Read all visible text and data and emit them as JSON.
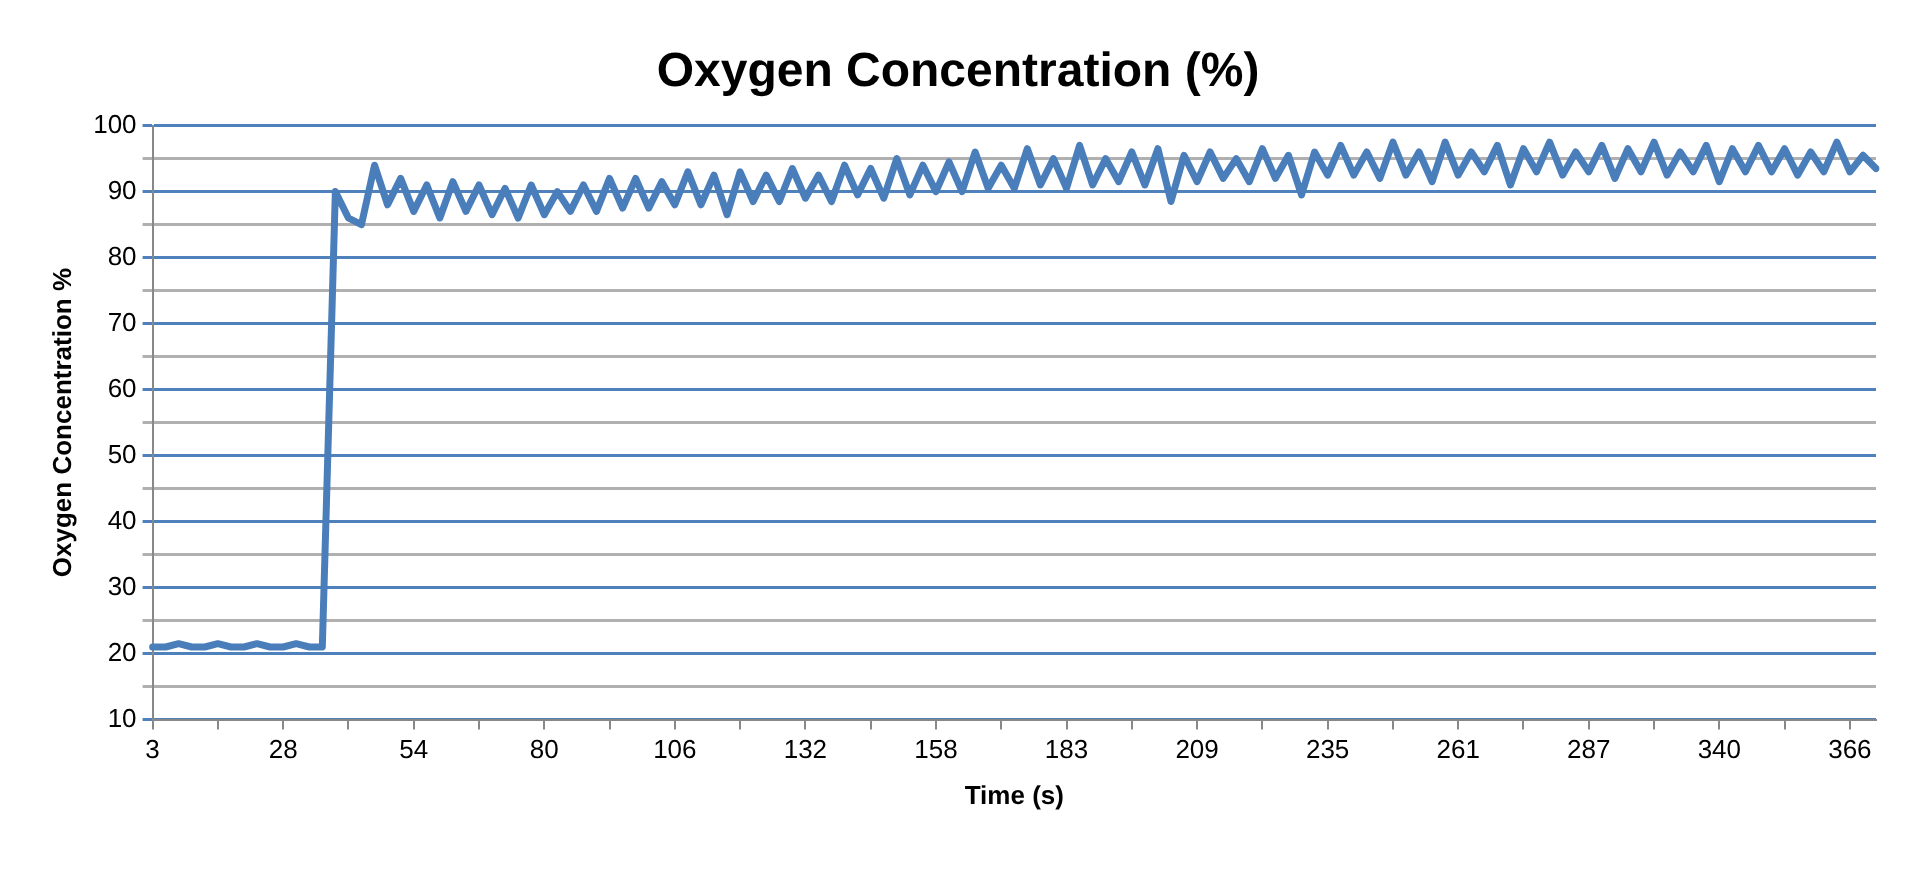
{
  "chart_data": {
    "type": "line",
    "title": "Oxygen Concentration (%)",
    "xlabel": "Time (s)",
    "ylabel": "Oxygen Concentration %",
    "categories": [
      "3",
      null,
      null,
      null,
      null,
      null,
      null,
      null,
      null,
      null,
      "28",
      null,
      null,
      null,
      null,
      null,
      null,
      null,
      null,
      null,
      "54",
      null,
      null,
      null,
      null,
      null,
      null,
      null,
      null,
      null,
      "80",
      null,
      null,
      null,
      null,
      null,
      null,
      null,
      null,
      null,
      "106",
      null,
      null,
      null,
      null,
      null,
      null,
      null,
      null,
      null,
      "132",
      null,
      null,
      null,
      null,
      null,
      null,
      null,
      null,
      null,
      "158",
      null,
      null,
      null,
      null,
      null,
      null,
      null,
      null,
      null,
      "183",
      null,
      null,
      null,
      null,
      null,
      null,
      null,
      null,
      null,
      "209",
      null,
      null,
      null,
      null,
      null,
      null,
      null,
      null,
      null,
      "235",
      null,
      null,
      null,
      null,
      null,
      null,
      null,
      null,
      null,
      "261",
      null,
      null,
      null,
      null,
      null,
      null,
      null,
      null,
      null,
      "287",
      null,
      null,
      null,
      null,
      null,
      null,
      null,
      null,
      null,
      "340",
      null,
      null,
      null,
      null,
      null,
      null,
      null,
      null,
      null,
      "366",
      null,
      null
    ],
    "series": [
      {
        "color": "#4a7ebb",
        "values": [
          21,
          21,
          21.5,
          21,
          21,
          21.5,
          21,
          21,
          21.5,
          21,
          21,
          21.5,
          21,
          21,
          90,
          86,
          85,
          94,
          88,
          92,
          87,
          91,
          86,
          91.5,
          87,
          91,
          86.5,
          90.5,
          86,
          91,
          86.5,
          90,
          87,
          91,
          87,
          92,
          87.5,
          92,
          87.5,
          91.5,
          88,
          93,
          88,
          92.5,
          86.5,
          93,
          88.5,
          92.5,
          88.5,
          93.5,
          89,
          92.5,
          88.5,
          94,
          89.5,
          93.5,
          89,
          95,
          89.5,
          94,
          90,
          94.5,
          90,
          96,
          90.5,
          94,
          90.5,
          96.5,
          91,
          95,
          90.5,
          97,
          91,
          95,
          91.5,
          96,
          91,
          96.5,
          88.5,
          95.5,
          91.5,
          96,
          92,
          95,
          91.5,
          96.5,
          92,
          95.5,
          89.5,
          96,
          92.5,
          97,
          92.5,
          96,
          92,
          97.5,
          92.5,
          96,
          91.5,
          97.5,
          92.5,
          96,
          93,
          97,
          91,
          96.5,
          93,
          97.5,
          92.5,
          96,
          93,
          97,
          92,
          96.5,
          93,
          97.5,
          92.5,
          96,
          93,
          97,
          91.5,
          96.5,
          93,
          97,
          93,
          96.5,
          92.5,
          96,
          93,
          97.5,
          93,
          95.5,
          93.5
        ]
      }
    ],
    "ylim": [
      10,
      100
    ],
    "yticks": [
      10,
      {
        "value": 15,
        "label": null
      },
      20,
      {
        "value": 25,
        "label": null
      },
      30,
      {
        "value": 35,
        "label": null
      },
      40,
      {
        "value": 45,
        "label": null
      },
      50,
      {
        "value": 55,
        "label": null
      },
      60,
      {
        "value": 65,
        "label": null
      },
      70,
      {
        "value": 75,
        "label": null
      },
      80,
      {
        "value": 85,
        "label": null
      },
      90,
      {
        "value": 95,
        "label": null
      },
      100
    ],
    "grid": "y",
    "legend": false,
    "marker": "none",
    "line_style": "solid"
  }
}
